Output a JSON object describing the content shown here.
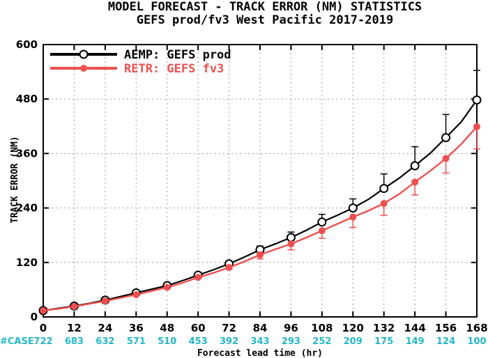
{
  "chart_data": {
    "type": "line",
    "title": "MODEL FORECAST - TRACK ERROR (NM) STATISTICS",
    "subtitle": "GEFS prod/fv3 West Pacific 2017-2019",
    "xlabel": "Forecast lead time (hr)",
    "ylabel": "TRACK ERROR (NM)",
    "x": [
      0,
      12,
      24,
      36,
      48,
      60,
      72,
      84,
      96,
      108,
      120,
      132,
      144,
      156,
      168
    ],
    "xlim": [
      0,
      168
    ],
    "ylim": [
      0,
      600
    ],
    "yticks": [
      0,
      120,
      240,
      360,
      480,
      600
    ],
    "grid": true,
    "legend_position": "top-left",
    "cases_label": "#CASE",
    "cases": [
      722,
      683,
      632,
      571,
      510,
      453,
      392,
      343,
      293,
      252,
      209,
      175,
      149,
      124,
      100
    ],
    "series": [
      {
        "name": "AEMP: GEFS prod",
        "color": "#000000",
        "marker": "open-circle",
        "values": [
          14,
          24,
          37,
          53,
          69,
          92,
          117,
          148,
          175,
          209,
          240,
          283,
          333,
          395,
          478
        ],
        "mid_values": [
          19,
          30,
          45,
          61,
          80,
          104,
          132,
          161,
          191,
          224,
          259,
          306,
          361,
          430
        ],
        "err_upper": [
          null,
          null,
          null,
          null,
          null,
          null,
          122,
          156,
          187,
          226,
          260,
          315,
          375,
          446,
          543
        ]
      },
      {
        "name": "RETR: GEFS fv3",
        "color": "#ef4f4f",
        "marker": "filled-circle",
        "values": [
          14,
          23,
          35,
          49,
          65,
          87,
          109,
          137,
          161,
          190,
          220,
          250,
          297,
          349,
          419
        ],
        "mid_values": [
          18,
          29,
          42,
          57,
          75,
          97,
          122,
          149,
          175,
          205,
          234,
          271,
          322,
          381
        ],
        "err_lower": [
          null,
          null,
          null,
          null,
          null,
          null,
          105,
          128,
          148,
          173,
          197,
          224,
          269,
          317,
          370
        ]
      }
    ]
  }
}
